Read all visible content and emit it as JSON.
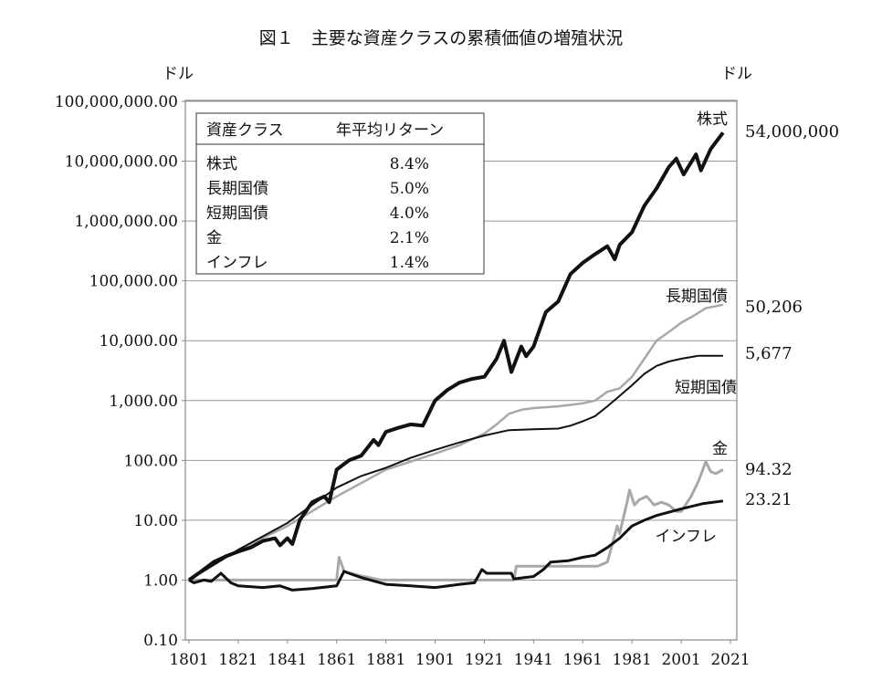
{
  "chart_data": {
    "type": "line",
    "title": "図１　主要な資産クラスの累積価値の増殖状況",
    "ylabel_left": "ドル",
    "ylabel_right": "ドル",
    "yscale": "log",
    "ylim": [
      0.1,
      100000000
    ],
    "xlim": [
      1801,
      2021
    ],
    "grid": true,
    "y_ticks": [
      "100,000,000.00",
      "10,000,000.00",
      "1,000,000.00",
      "100,000.00",
      "10,000.00",
      "1,000.00",
      "100.00",
      "10.00",
      "1.00",
      "0.10"
    ],
    "x_ticks": [
      "1801",
      "1821",
      "1841",
      "1861",
      "1881",
      "1901",
      "1921",
      "1941",
      "1961",
      "1981",
      "2001",
      "2021"
    ],
    "legend_table": {
      "placement": "top-left",
      "headers": [
        "資産クラス",
        "年平均リターン"
      ],
      "rows": [
        {
          "asset": "株式",
          "return": "8.4%"
        },
        {
          "asset": "長期国債",
          "return": "5.0%"
        },
        {
          "asset": "短期国債",
          "return": "4.0%"
        },
        {
          "asset": "金",
          "return": "2.1%"
        },
        {
          "asset": "インフレ",
          "return": "1.4%"
        }
      ]
    },
    "series": [
      {
        "name": "株式",
        "end_label": "54,000,000",
        "color": "#111111",
        "width": 4,
        "points": [
          [
            1801,
            1
          ],
          [
            1806,
            1.4
          ],
          [
            1811,
            2
          ],
          [
            1816,
            2.5
          ],
          [
            1821,
            3
          ],
          [
            1826,
            3.5
          ],
          [
            1831,
            4.5
          ],
          [
            1836,
            5
          ],
          [
            1838,
            3.8
          ],
          [
            1841,
            5
          ],
          [
            1843,
            4
          ],
          [
            1846,
            10
          ],
          [
            1851,
            20
          ],
          [
            1856,
            25
          ],
          [
            1858,
            20
          ],
          [
            1861,
            70
          ],
          [
            1866,
            100
          ],
          [
            1871,
            120
          ],
          [
            1876,
            220
          ],
          [
            1878,
            180
          ],
          [
            1881,
            300
          ],
          [
            1886,
            350
          ],
          [
            1891,
            400
          ],
          [
            1896,
            380
          ],
          [
            1901,
            1000
          ],
          [
            1906,
            1500
          ],
          [
            1911,
            2000
          ],
          [
            1916,
            2300
          ],
          [
            1921,
            2500
          ],
          [
            1926,
            5000
          ],
          [
            1929,
            10000
          ],
          [
            1932,
            3000
          ],
          [
            1936,
            8000
          ],
          [
            1938,
            5500
          ],
          [
            1941,
            8000
          ],
          [
            1946,
            30000
          ],
          [
            1951,
            45000
          ],
          [
            1956,
            130000
          ],
          [
            1961,
            200000
          ],
          [
            1966,
            280000
          ],
          [
            1971,
            380000
          ],
          [
            1974,
            230000
          ],
          [
            1976,
            400000
          ],
          [
            1981,
            650000
          ],
          [
            1986,
            1800000
          ],
          [
            1991,
            3500000
          ],
          [
            1996,
            8000000
          ],
          [
            1999,
            11000000
          ],
          [
            2002,
            6000000
          ],
          [
            2007,
            13000000
          ],
          [
            2009,
            7000000
          ],
          [
            2013,
            16000000
          ],
          [
            2018,
            30000000
          ]
        ]
      },
      {
        "name": "長期国債",
        "end_label": "50,206",
        "color": "#a8a8a8",
        "width": 2.5,
        "points": [
          [
            1801,
            1
          ],
          [
            1821,
            3.2
          ],
          [
            1841,
            8
          ],
          [
            1861,
            25
          ],
          [
            1881,
            70
          ],
          [
            1901,
            130
          ],
          [
            1911,
            180
          ],
          [
            1921,
            280
          ],
          [
            1926,
            400
          ],
          [
            1931,
            600
          ],
          [
            1936,
            700
          ],
          [
            1941,
            750
          ],
          [
            1951,
            800
          ],
          [
            1961,
            900
          ],
          [
            1966,
            1000
          ],
          [
            1971,
            1400
          ],
          [
            1976,
            1600
          ],
          [
            1981,
            2500
          ],
          [
            1986,
            5000
          ],
          [
            1991,
            10000
          ],
          [
            1996,
            14000
          ],
          [
            2001,
            20000
          ],
          [
            2006,
            26000
          ],
          [
            2011,
            35000
          ],
          [
            2018,
            40000
          ]
        ]
      },
      {
        "name": "短期国債",
        "end_label": "5,677",
        "color": "#111111",
        "width": 2,
        "points": [
          [
            1801,
            1
          ],
          [
            1821,
            3.2
          ],
          [
            1841,
            9
          ],
          [
            1851,
            18
          ],
          [
            1861,
            35
          ],
          [
            1871,
            55
          ],
          [
            1881,
            75
          ],
          [
            1891,
            110
          ],
          [
            1901,
            150
          ],
          [
            1911,
            200
          ],
          [
            1921,
            260
          ],
          [
            1931,
            320
          ],
          [
            1941,
            330
          ],
          [
            1951,
            340
          ],
          [
            1956,
            380
          ],
          [
            1961,
            450
          ],
          [
            1966,
            550
          ],
          [
            1971,
            800
          ],
          [
            1976,
            1200
          ],
          [
            1981,
            1800
          ],
          [
            1986,
            2800
          ],
          [
            1991,
            3800
          ],
          [
            1996,
            4500
          ],
          [
            2001,
            5000
          ],
          [
            2008,
            5600
          ],
          [
            2018,
            5600
          ]
        ]
      },
      {
        "name": "金",
        "end_label": "94.32",
        "color": "#a8a8a8",
        "width": 3,
        "points": [
          [
            1801,
            1
          ],
          [
            1861,
            1
          ],
          [
            1862,
            2.4
          ],
          [
            1864,
            1.4
          ],
          [
            1870,
            1.2
          ],
          [
            1879,
            1
          ],
          [
            1933,
            1
          ],
          [
            1934,
            1.7
          ],
          [
            1967,
            1.7
          ],
          [
            1971,
            2
          ],
          [
            1973,
            4
          ],
          [
            1975,
            8
          ],
          [
            1976,
            6
          ],
          [
            1979,
            20
          ],
          [
            1980,
            32
          ],
          [
            1982,
            18
          ],
          [
            1984,
            22
          ],
          [
            1987,
            25
          ],
          [
            1990,
            18
          ],
          [
            1993,
            20
          ],
          [
            1996,
            18
          ],
          [
            1999,
            14
          ],
          [
            2001,
            14
          ],
          [
            2005,
            25
          ],
          [
            2008,
            45
          ],
          [
            2011,
            95
          ],
          [
            2013,
            65
          ],
          [
            2015,
            60
          ],
          [
            2018,
            70
          ]
        ]
      },
      {
        "name": "インフレ",
        "end_label": "23.21",
        "color": "#111111",
        "width": 3,
        "points": [
          [
            1801,
            1
          ],
          [
            1803,
            0.9
          ],
          [
            1807,
            1
          ],
          [
            1810,
            0.95
          ],
          [
            1814,
            1.3
          ],
          [
            1818,
            0.9
          ],
          [
            1821,
            0.8
          ],
          [
            1831,
            0.75
          ],
          [
            1838,
            0.8
          ],
          [
            1843,
            0.68
          ],
          [
            1851,
            0.72
          ],
          [
            1861,
            0.8
          ],
          [
            1864,
            1.4
          ],
          [
            1866,
            1.3
          ],
          [
            1871,
            1.1
          ],
          [
            1881,
            0.85
          ],
          [
            1891,
            0.8
          ],
          [
            1901,
            0.75
          ],
          [
            1911,
            0.85
          ],
          [
            1917,
            0.9
          ],
          [
            1920,
            1.5
          ],
          [
            1922,
            1.3
          ],
          [
            1932,
            1.3
          ],
          [
            1933,
            1.05
          ],
          [
            1941,
            1.15
          ],
          [
            1945,
            1.5
          ],
          [
            1948,
            2
          ],
          [
            1955,
            2.1
          ],
          [
            1961,
            2.4
          ],
          [
            1966,
            2.6
          ],
          [
            1971,
            3.5
          ],
          [
            1976,
            5
          ],
          [
            1981,
            8
          ],
          [
            1986,
            10
          ],
          [
            1991,
            12
          ],
          [
            2001,
            15.5
          ],
          [
            2010,
            19
          ],
          [
            2018,
            21
          ]
        ]
      }
    ]
  }
}
